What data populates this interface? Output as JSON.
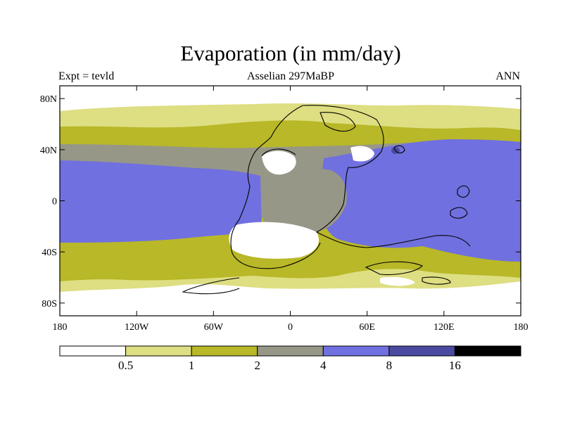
{
  "title": "Evaporation (in mm/day)",
  "left_string": "Expt = tevld",
  "center_string": "Asselian 297MaBP",
  "right_string": "ANN",
  "x_ticks": [
    "180",
    "120W",
    "60W",
    "0",
    "60E",
    "120E",
    "180"
  ],
  "y_ticks": [
    "80N",
    "40N",
    "0",
    "40S",
    "80S"
  ],
  "colorbar": {
    "colors": [
      "#ffffff",
      "#dede82",
      "#b8b828",
      "#979788",
      "#7070e0",
      "#4a4aa0",
      "#000000"
    ],
    "labels": [
      "0.5",
      "1",
      "2",
      "4",
      "8",
      "16"
    ]
  },
  "chart_data": {
    "type": "heatmap",
    "title": "Evaporation (in mm/day)",
    "xlabel": "",
    "ylabel": "",
    "xlim": [
      -180,
      180
    ],
    "ylim": [
      -90,
      90
    ],
    "contour_levels": [
      0.5,
      1,
      2,
      4,
      8,
      16
    ]
  }
}
